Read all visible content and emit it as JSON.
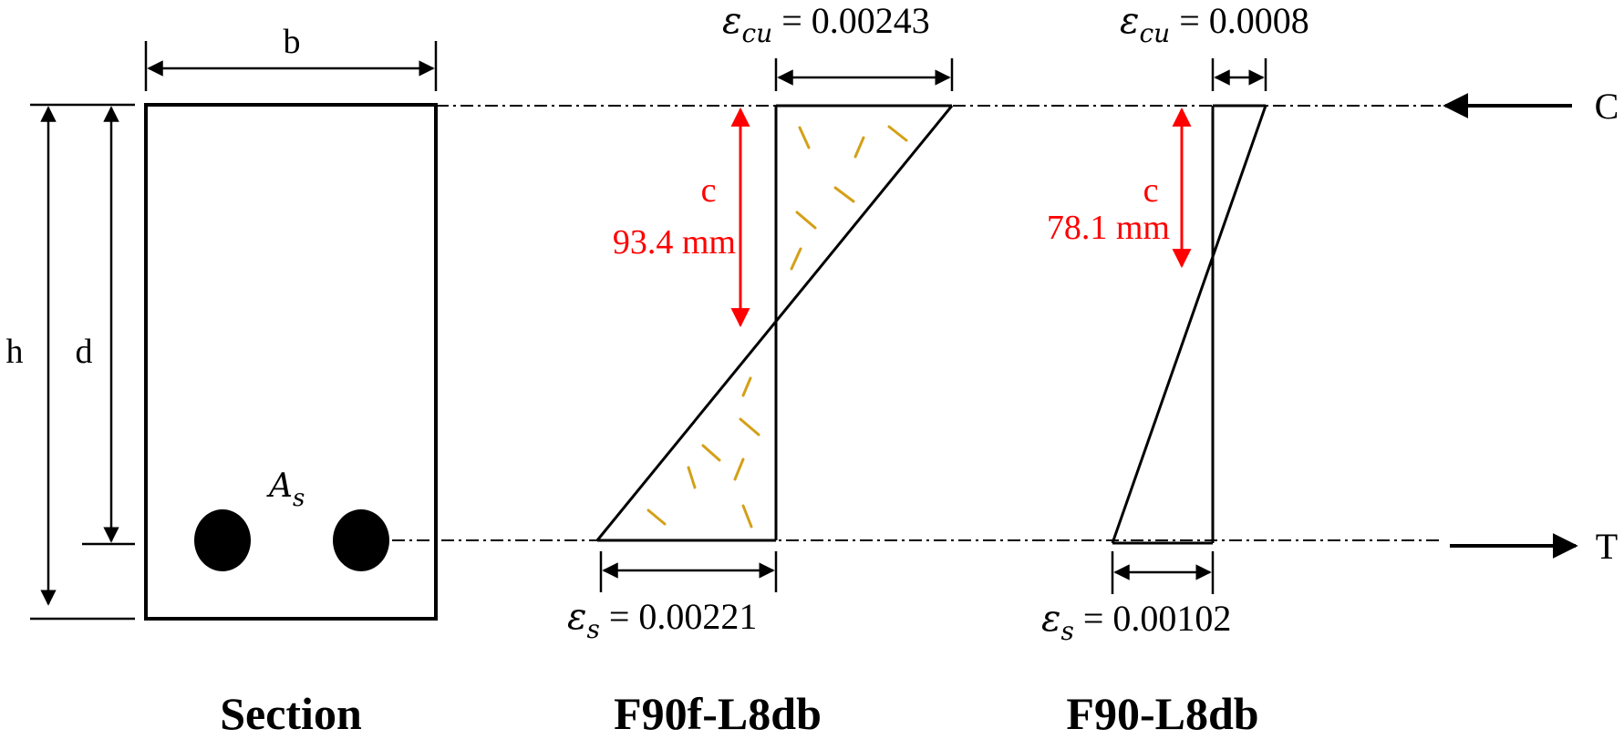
{
  "section": {
    "width_label": "b",
    "height_label": "h",
    "depth_label": "d",
    "steel_area_symbol": "A",
    "steel_area_subscript": "s",
    "caption": "Section"
  },
  "diagram_1": {
    "caption": "F90f-L8db",
    "top_strain_symbol": "ε",
    "top_strain_subscript": "cu",
    "top_strain_value": "= 0.00243",
    "bottom_strain_symbol": "ε",
    "bottom_strain_subscript": "s",
    "bottom_strain_value": "= 0.00221",
    "neutral_axis_label": "c",
    "neutral_axis_depth": "93.4 mm"
  },
  "diagram_2": {
    "caption": "F90-L8db",
    "top_strain_symbol": "ε",
    "top_strain_subscript": "cu",
    "top_strain_value": "= 0.0008",
    "bottom_strain_symbol": "ε",
    "bottom_strain_subscript": "s",
    "bottom_strain_value": "= 0.00102",
    "neutral_axis_label": "c",
    "neutral_axis_depth": "78.1 mm"
  },
  "forces": {
    "compression_label": "C",
    "tension_label": "T"
  },
  "colors": {
    "line": "#000000",
    "annotation_red": "#ff0000",
    "fiber_hatch": "#d4a017"
  }
}
